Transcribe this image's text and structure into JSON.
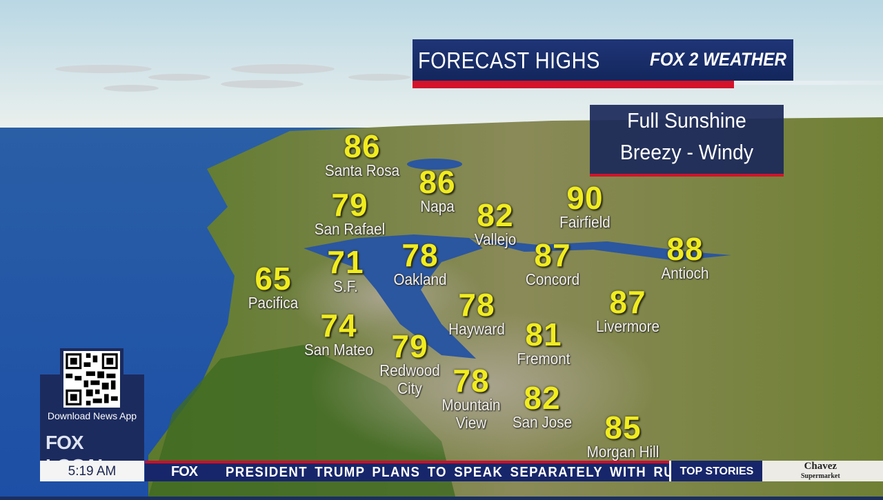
{
  "header": {
    "title": "FORECAST HIGHS",
    "brand": "FOX 2 WEATHER",
    "accent_color": "#d4122a",
    "panel_color": "#1f3577"
  },
  "conditions": {
    "line1": "Full Sunshine",
    "line2": "Breezy - Windy"
  },
  "cities": [
    {
      "name": "Santa Rosa",
      "temp": "86"
    },
    {
      "name": "Napa",
      "temp": "86"
    },
    {
      "name": "San Rafael",
      "temp": "79"
    },
    {
      "name": "Vallejo",
      "temp": "82"
    },
    {
      "name": "Fairfield",
      "temp": "90"
    },
    {
      "name": "Oakland",
      "temp": "78"
    },
    {
      "name": "S.F.",
      "temp": "71"
    },
    {
      "name": "Concord",
      "temp": "87"
    },
    {
      "name": "Antioch",
      "temp": "88"
    },
    {
      "name": "Pacifica",
      "temp": "65"
    },
    {
      "name": "Hayward",
      "temp": "78"
    },
    {
      "name": "Livermore",
      "temp": "87"
    },
    {
      "name": "San Mateo",
      "temp": "74"
    },
    {
      "name": "Redwood City",
      "temp": "79"
    },
    {
      "name": "Fremont",
      "temp": "81"
    },
    {
      "name": "Mountain View",
      "temp": "78"
    },
    {
      "name": "San Jose",
      "temp": "82"
    },
    {
      "name": "Morgan Hill",
      "temp": "85"
    }
  ],
  "app_promo": {
    "label": "Download News App",
    "logo": "FOX LOCAL",
    "qr_icon": "qr-code-icon"
  },
  "lower_third": {
    "time": "5:19 AM",
    "ticker_logo": "FOX",
    "ticker_text": "PRESIDENT TRUMP PLANS TO SPEAK SEPARATELY WITH RU",
    "section": "TOP STORIES",
    "sponsor": "Chavez Supermarket"
  }
}
